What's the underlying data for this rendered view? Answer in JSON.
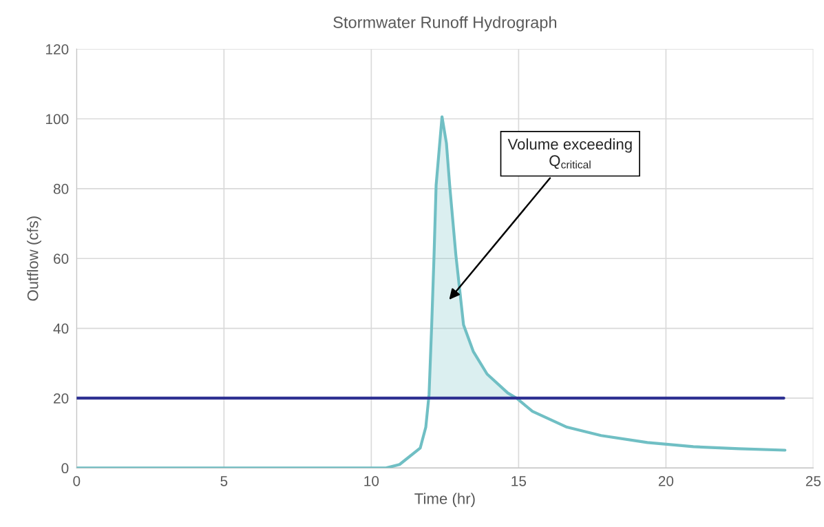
{
  "chart_data": {
    "type": "line",
    "title": "Stormwater Runoff Hydrograph",
    "xlabel": "Time (hr)",
    "ylabel": "Outflow (cfs)",
    "xlim": [
      0,
      25
    ],
    "xticks": [
      0,
      5,
      10,
      15,
      20,
      25
    ],
    "ylim": [
      0,
      120
    ],
    "yticks": [
      0,
      20,
      40,
      60,
      80,
      100,
      120
    ],
    "grid": true,
    "marker": "none",
    "line_style": "solid",
    "series": [
      {
        "color": "#70bfc4",
        "x": [
          0,
          10.5,
          10.96,
          11.66,
          11.85,
          11.96,
          12.05,
          12.13,
          12.2,
          12.4,
          12.55,
          12.66,
          12.87,
          13.13,
          13.46,
          13.93,
          14.63,
          14.93,
          15.47,
          16.64,
          17.8,
          19.37,
          20.93,
          22.48,
          24.04
        ],
        "values": [
          0,
          0,
          1,
          5.7,
          11.7,
          21,
          41,
          61,
          81,
          100.6,
          93,
          81,
          61,
          41,
          33.4,
          26.9,
          21.5,
          20,
          16.2,
          11.7,
          9.3,
          7.3,
          6.1,
          5.5,
          5.1
        ],
        "lower": [
          null,
          null,
          null,
          null,
          null,
          20,
          20,
          20,
          20,
          20,
          20,
          20,
          20,
          20,
          20,
          20,
          20,
          20,
          null,
          null,
          null,
          null,
          null,
          null,
          null
        ],
        "upper": [
          null,
          null,
          null,
          null,
          null,
          21,
          41,
          61,
          81,
          100.6,
          93,
          81,
          61,
          41,
          33.4,
          26.9,
          21.5,
          20,
          null,
          null,
          null,
          null,
          null,
          null,
          null
        ]
      },
      {
        "color": "#2e3192",
        "x": [
          0,
          24
        ],
        "values": [
          20,
          20
        ]
      }
    ],
    "annotations": [
      "Volume exceeding Q$_{critical}$"
    ]
  }
}
